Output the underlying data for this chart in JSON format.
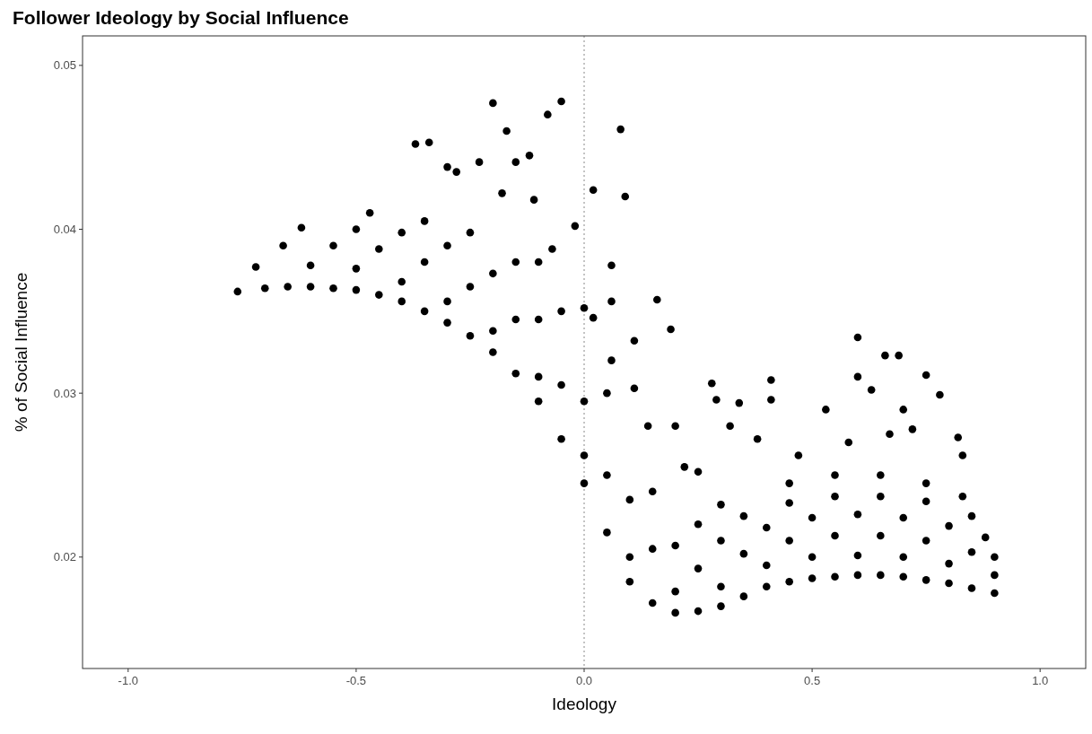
{
  "chart_data": {
    "type": "scatter",
    "title": "Follower Ideology by Social Influence",
    "xlabel": "Ideology",
    "ylabel": "% of Social Influence",
    "xlim": [
      -1.1,
      1.1
    ],
    "ylim": [
      0.0132,
      0.0518
    ],
    "xticks": [
      {
        "value": -1,
        "label": "-1.0"
      },
      -0.5,
      {
        "value": 0,
        "label": "0.0"
      },
      0.5,
      {
        "value": 1,
        "label": "1.0"
      }
    ],
    "yticks": [
      0.02,
      0.03,
      0.04,
      0.05
    ],
    "grid": false,
    "marker": "circle",
    "ref_lines": [
      {
        "axis": "x",
        "value": 0,
        "line_style": "dotted",
        "color": "#888888"
      }
    ],
    "series": [
      {
        "color": "#000000",
        "x": [
          -0.76,
          -0.7,
          -0.65,
          -0.6,
          -0.55,
          -0.5,
          -0.45,
          -0.4,
          -0.35,
          -0.3,
          -0.25,
          -0.2,
          -0.15,
          -0.1,
          -0.05,
          0,
          0.05,
          0.1,
          0.15,
          0.2,
          0.25,
          0.3,
          0.35,
          0.4,
          0.45,
          0.5,
          0.55,
          0.6,
          0.65,
          0.7,
          0.75,
          0.8,
          0.85,
          0.9,
          -0.72,
          -0.6,
          -0.5,
          -0.4,
          -0.3,
          -0.2,
          -0.1,
          0,
          0.1,
          0.2,
          0.3,
          0.4,
          0.5,
          0.6,
          0.7,
          0.8,
          0.9,
          -0.66,
          -0.55,
          -0.45,
          -0.35,
          -0.25,
          -0.15,
          -0.05,
          0.05,
          0.15,
          0.25,
          0.35,
          0.45,
          0.55,
          0.65,
          0.75,
          0.85,
          0.9,
          -0.62,
          -0.5,
          -0.4,
          -0.3,
          -0.2,
          -0.1,
          0,
          0.1,
          0.2,
          0.3,
          0.4,
          0.5,
          0.6,
          0.7,
          0.8,
          0.88,
          -0.47,
          -0.35,
          -0.25,
          -0.15,
          -0.05,
          0.05,
          0.15,
          0.25,
          0.35,
          0.45,
          0.55,
          0.65,
          0.75,
          0.85,
          0.3,
          0.45,
          0.55,
          0.65,
          0.75,
          0.83,
          -0.37,
          -0.34,
          -0.3,
          -0.28,
          -0.23,
          -0.2,
          -0.17,
          -0.15,
          -0.12,
          -0.08,
          -0.05,
          0.02,
          0.08,
          0.09,
          -0.11,
          -0.18,
          -0.02,
          0.06,
          0.06,
          0.16,
          0.19,
          0.11,
          0.11,
          0.28,
          0.29,
          0.34,
          0.41,
          0.41,
          0.6,
          0.66,
          0.69,
          0.75,
          0.78,
          0.63,
          0.6,
          0.53,
          0.32,
          0.38,
          0.47,
          0.82,
          0.83,
          0.2,
          0.14,
          0.22,
          0.25,
          -0.07,
          -0.1,
          0,
          0.02,
          0.06,
          0.7,
          0.72,
          0.67,
          0.58
        ],
        "values": [
          0.0362,
          0.0364,
          0.0365,
          0.0365,
          0.0364,
          0.0363,
          0.036,
          0.0356,
          0.035,
          0.0343,
          0.0335,
          0.0325,
          0.0312,
          0.0295,
          0.0272,
          0.0245,
          0.0215,
          0.0185,
          0.0172,
          0.0166,
          0.0167,
          0.017,
          0.0176,
          0.0182,
          0.0185,
          0.0187,
          0.0188,
          0.0189,
          0.0189,
          0.0188,
          0.0186,
          0.0184,
          0.0181,
          0.0178,
          0.0377,
          0.0378,
          0.0376,
          0.0368,
          0.0356,
          0.0338,
          0.031,
          0.0262,
          0.02,
          0.0179,
          0.0182,
          0.0195,
          0.02,
          0.0201,
          0.02,
          0.0196,
          0.0189,
          0.039,
          0.039,
          0.0388,
          0.038,
          0.0365,
          0.0345,
          0.0305,
          0.025,
          0.0205,
          0.0193,
          0.0202,
          0.021,
          0.0213,
          0.0213,
          0.021,
          0.0203,
          0.02,
          0.0401,
          0.04,
          0.0398,
          0.039,
          0.0373,
          0.0345,
          0.0295,
          0.0235,
          0.0207,
          0.021,
          0.0218,
          0.0224,
          0.0226,
          0.0224,
          0.0219,
          0.0212,
          0.041,
          0.0405,
          0.0398,
          0.038,
          0.035,
          0.03,
          0.024,
          0.022,
          0.0225,
          0.0233,
          0.0237,
          0.0237,
          0.0234,
          0.0225,
          0.0232,
          0.0245,
          0.025,
          0.025,
          0.0245,
          0.0237,
          0.0452,
          0.0453,
          0.0438,
          0.0435,
          0.0441,
          0.0477,
          0.046,
          0.0441,
          0.0445,
          0.047,
          0.0478,
          0.0424,
          0.0461,
          0.042,
          0.0418,
          0.0422,
          0.0402,
          0.0378,
          0.0356,
          0.0357,
          0.0339,
          0.0332,
          0.0303,
          0.0306,
          0.0296,
          0.0294,
          0.0308,
          0.0296,
          0.0334,
          0.0323,
          0.0323,
          0.0311,
          0.0299,
          0.0302,
          0.031,
          0.029,
          0.028,
          0.0272,
          0.0262,
          0.0273,
          0.0262,
          0.028,
          0.028,
          0.0255,
          0.0252,
          0.0388,
          0.038,
          0.0352,
          0.0346,
          0.032,
          0.029,
          0.0278,
          0.0275,
          0.027
        ]
      }
    ]
  }
}
